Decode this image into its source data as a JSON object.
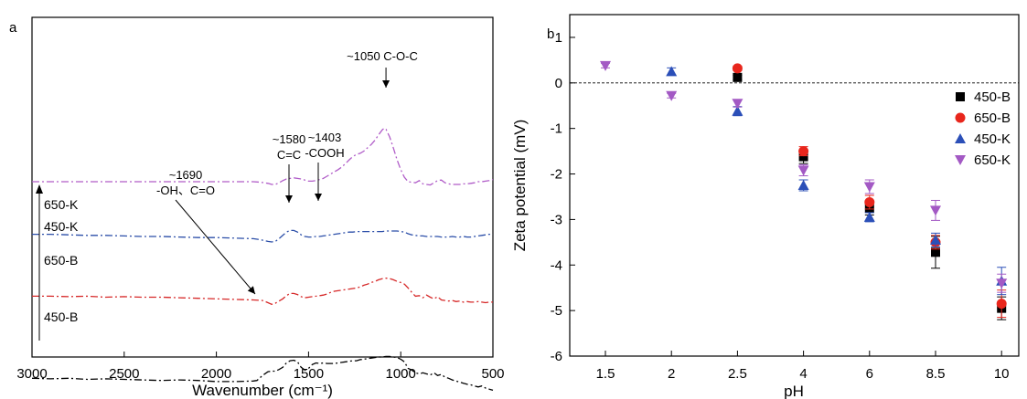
{
  "chart_data": [
    {
      "type": "line",
      "panel_label": "a",
      "xlabel": "Wavenumber (cm⁻¹)",
      "ylabel": "",
      "xlim": [
        3000,
        500
      ],
      "x_reversed": true,
      "x_ticks": [
        3000,
        2500,
        2000,
        1500,
        1000,
        500
      ],
      "y_ticks_shown": false,
      "series": [
        {
          "name": "450-B",
          "color": "#000000",
          "dash": "8 3 2 3",
          "x": [
            3000,
            2900,
            2800,
            2700,
            2600,
            2500,
            2400,
            2300,
            2200,
            2100,
            2000,
            1900,
            1800,
            1780,
            1750,
            1720,
            1700,
            1680,
            1660,
            1640,
            1620,
            1600,
            1580,
            1560,
            1540,
            1520,
            1500,
            1480,
            1460,
            1440,
            1420,
            1400,
            1380,
            1360,
            1340,
            1320,
            1300,
            1280,
            1260,
            1240,
            1220,
            1200,
            1180,
            1160,
            1140,
            1120,
            1100,
            1080,
            1060,
            1040,
            1020,
            1000,
            980,
            960,
            940,
            920,
            900,
            880,
            860,
            840,
            820,
            800,
            780,
            760,
            740,
            720,
            700,
            680,
            660,
            640,
            620,
            600,
            580,
            560,
            540,
            520,
            500
          ],
          "y": [
            0.6,
            0.61,
            0.6,
            0.62,
            0.61,
            0.62,
            0.63,
            0.64,
            0.63,
            0.64,
            0.66,
            0.66,
            0.65,
            0.64,
            0.55,
            0.48,
            0.47,
            0.47,
            0.44,
            0.4,
            0.32,
            0.28,
            0.27,
            0.3,
            0.4,
            0.45,
            0.42,
            0.35,
            0.32,
            0.33,
            0.32,
            0.33,
            0.33,
            0.33,
            0.32,
            0.31,
            0.3,
            0.29,
            0.28,
            0.28,
            0.26,
            0.25,
            0.24,
            0.23,
            0.22,
            0.21,
            0.21,
            0.2,
            0.2,
            0.21,
            0.22,
            0.25,
            0.3,
            0.42,
            0.45,
            0.5,
            0.52,
            0.5,
            0.52,
            0.54,
            0.5,
            0.55,
            0.53,
            0.58,
            0.6,
            0.63,
            0.65,
            0.67,
            0.69,
            0.71,
            0.72,
            0.74,
            0.76,
            0.74,
            0.78,
            0.8,
            0.82
          ]
        },
        {
          "name": "650-B",
          "color": "#d62828",
          "dash": "8 3 2 3",
          "x": [
            3000,
            2900,
            2800,
            2700,
            2600,
            2500,
            2400,
            2300,
            2200,
            2100,
            2000,
            1900,
            1800,
            1750,
            1720,
            1700,
            1680,
            1660,
            1640,
            1620,
            1600,
            1580,
            1560,
            1540,
            1520,
            1500,
            1480,
            1460,
            1440,
            1420,
            1400,
            1380,
            1360,
            1340,
            1320,
            1300,
            1280,
            1260,
            1240,
            1220,
            1200,
            1180,
            1160,
            1140,
            1120,
            1100,
            1080,
            1060,
            1040,
            1020,
            1000,
            980,
            960,
            940,
            920,
            900,
            880,
            860,
            840,
            820,
            800,
            780,
            760,
            740,
            720,
            700,
            680,
            660,
            640,
            620,
            600,
            580,
            560,
            540,
            520,
            500
          ],
          "y": [
            0.25,
            0.25,
            0.26,
            0.25,
            0.27,
            0.26,
            0.27,
            0.27,
            0.28,
            0.29,
            0.3,
            0.31,
            0.32,
            0.33,
            0.37,
            0.4,
            0.38,
            0.34,
            0.3,
            0.24,
            0.2,
            0.2,
            0.22,
            0.26,
            0.28,
            0.27,
            0.26,
            0.25,
            0.24,
            0.23,
            0.21,
            0.18,
            0.16,
            0.15,
            0.14,
            0.13,
            0.12,
            0.11,
            0.1,
            0.08,
            0.05,
            0.03,
            0.0,
            -0.02,
            -0.05,
            -0.07,
            -0.08,
            -0.07,
            -0.05,
            -0.02,
            0.0,
            0.03,
            0.1,
            0.18,
            0.25,
            0.24,
            0.28,
            0.23,
            0.27,
            0.3,
            0.26,
            0.32,
            0.33,
            0.34,
            0.33,
            0.35,
            0.34,
            0.36,
            0.35,
            0.36,
            0.36,
            0.35,
            0.36,
            0.37,
            0.36,
            0.36
          ]
        },
        {
          "name": "450-K",
          "color": "#2b4ea8",
          "dash": "8 3 2 3",
          "x": [
            3000,
            2900,
            2800,
            2700,
            2600,
            2500,
            2400,
            2300,
            2200,
            2100,
            2000,
            1900,
            1800,
            1760,
            1720,
            1700,
            1680,
            1660,
            1640,
            1620,
            1600,
            1580,
            1560,
            1540,
            1520,
            1500,
            1480,
            1460,
            1440,
            1420,
            1400,
            1380,
            1360,
            1340,
            1320,
            1300,
            1280,
            1260,
            1240,
            1220,
            1200,
            1180,
            1160,
            1140,
            1120,
            1100,
            1080,
            1060,
            1040,
            1020,
            1000,
            980,
            960,
            940,
            920,
            900,
            880,
            860,
            840,
            820,
            800,
            780,
            760,
            740,
            720,
            700,
            680,
            660,
            640,
            620,
            600,
            580,
            560,
            540,
            520,
            500
          ],
          "y": [
            0.04,
            0.04,
            0.05,
            0.06,
            0.06,
            0.07,
            0.08,
            0.08,
            0.09,
            0.1,
            0.1,
            0.11,
            0.12,
            0.14,
            0.17,
            0.18,
            0.17,
            0.12,
            0.06,
            0.0,
            -0.03,
            -0.03,
            0.0,
            0.05,
            0.08,
            0.09,
            0.09,
            0.08,
            0.08,
            0.07,
            0.06,
            0.05,
            0.04,
            0.03,
            0.02,
            0.01,
            0.0,
            0.0,
            -0.01,
            -0.01,
            -0.01,
            -0.01,
            -0.01,
            -0.01,
            -0.01,
            -0.01,
            -0.02,
            -0.02,
            -0.02,
            -0.02,
            -0.01,
            0.0,
            0.03,
            0.05,
            0.06,
            0.07,
            0.07,
            0.08,
            0.08,
            0.08,
            0.08,
            0.09,
            0.09,
            0.09,
            0.08,
            0.09,
            0.09,
            0.08,
            0.09,
            0.09,
            0.08,
            0.07,
            0.06,
            0.05,
            0.04,
            0.04
          ]
        },
        {
          "name": "650-K",
          "color": "#b05cc8",
          "dash": "8 3 2 3",
          "x": [
            3000,
            2900,
            2800,
            2700,
            2600,
            2500,
            2400,
            2300,
            2200,
            2100,
            2000,
            1900,
            1800,
            1760,
            1720,
            1700,
            1680,
            1660,
            1640,
            1620,
            1600,
            1580,
            1560,
            1540,
            1520,
            1500,
            1480,
            1460,
            1440,
            1420,
            1400,
            1380,
            1360,
            1340,
            1320,
            1300,
            1280,
            1260,
            1240,
            1220,
            1200,
            1180,
            1160,
            1140,
            1120,
            1100,
            1090,
            1080,
            1060,
            1040,
            1020,
            1000,
            980,
            960,
            940,
            920,
            900,
            880,
            860,
            840,
            820,
            800,
            780,
            760,
            740,
            720,
            700,
            680,
            660,
            640,
            620,
            600,
            580,
            560,
            540,
            520,
            500
          ],
          "y": [
            0.0,
            0.0,
            0.0,
            0.0,
            0.0,
            0.0,
            0.0,
            0.0,
            0.0,
            0.0,
            0.0,
            0.0,
            0.0,
            0.01,
            0.03,
            0.05,
            0.05,
            0.02,
            -0.02,
            -0.05,
            -0.06,
            -0.07,
            -0.06,
            -0.05,
            -0.03,
            -0.01,
            -0.01,
            -0.02,
            -0.04,
            -0.06,
            -0.1,
            -0.14,
            -0.18,
            -0.22,
            -0.27,
            -0.33,
            -0.4,
            -0.46,
            -0.5,
            -0.52,
            -0.56,
            -0.62,
            -0.68,
            -0.76,
            -0.86,
            -0.95,
            -0.98,
            -0.96,
            -0.82,
            -0.62,
            -0.4,
            -0.22,
            -0.08,
            0.0,
            0.01,
            0.02,
            -0.02,
            0.04,
            0.05,
            0.06,
            0.02,
            -0.02,
            -0.03,
            0.02,
            0.04,
            0.05,
            0.05,
            0.05,
            0.04,
            0.04,
            0.03,
            0.02,
            0.0,
            0.0,
            -0.01,
            -0.02,
            -0.04
          ]
        }
      ],
      "offsets": [
        -0.08,
        0.22,
        0.46,
        0.7
      ],
      "curve_labels": [
        {
          "text": "450-B",
          "series": 0
        },
        {
          "text": "650-B",
          "series": 1
        },
        {
          "text": "450-K",
          "series": 2
        },
        {
          "text": "650-K",
          "series": 3
        }
      ],
      "annotations": [
        {
          "lines": [
            "~1050 C-O-C"
          ],
          "wavenumber": 1080
        },
        {
          "lines": [
            "~1580",
            "C=C"
          ],
          "wavenumber": 1580
        },
        {
          "lines": [
            "~1403",
            "-COOH"
          ],
          "wavenumber": 1403
        },
        {
          "lines": [
            "~1690",
            "-OH、C=O"
          ],
          "wavenumber": 1690
        }
      ]
    },
    {
      "type": "scatter",
      "panel_label": "b",
      "xlabel": "pH",
      "ylabel": "Zeta potential (mV)",
      "categories": [
        "1.5",
        "2",
        "2.5",
        "4",
        "6",
        "8.5",
        "10"
      ],
      "ylim": [
        -6,
        1.5
      ],
      "y_ticks": [
        1,
        0,
        -1,
        -2,
        -3,
        -4,
        -5,
        -6
      ],
      "reference_line_y": 0,
      "legend_position": "right",
      "series": [
        {
          "name": "450-B",
          "color": "#000000",
          "marker": "square",
          "values": [
            null,
            null,
            0.12,
            -1.62,
            -2.75,
            -3.72,
            -4.95
          ],
          "errors": [
            null,
            null,
            0.05,
            0.15,
            0.15,
            0.35,
            0.25
          ]
        },
        {
          "name": "650-B",
          "color": "#e8261c",
          "marker": "circle",
          "values": [
            null,
            null,
            0.32,
            -1.5,
            -2.62,
            -3.5,
            -4.85
          ],
          "errors": [
            null,
            null,
            0.05,
            0.1,
            0.15,
            0.15,
            0.3
          ]
        },
        {
          "name": "450-K",
          "color": "#2b4fb8",
          "marker": "triangle-up",
          "values": [
            null,
            0.25,
            -0.62,
            -2.25,
            -2.95,
            -3.45,
            -4.35
          ],
          "errors": [
            null,
            0.08,
            0.1,
            0.12,
            0.1,
            0.15,
            0.3
          ]
        },
        {
          "name": "650-K",
          "color": "#a359c4",
          "marker": "triangle-down",
          "values": [
            0.38,
            -0.28,
            -0.45,
            -1.92,
            -2.28,
            -2.8,
            -4.4
          ],
          "errors": [
            0.05,
            0.05,
            0.08,
            0.12,
            0.15,
            0.22,
            0.2
          ]
        }
      ]
    }
  ]
}
